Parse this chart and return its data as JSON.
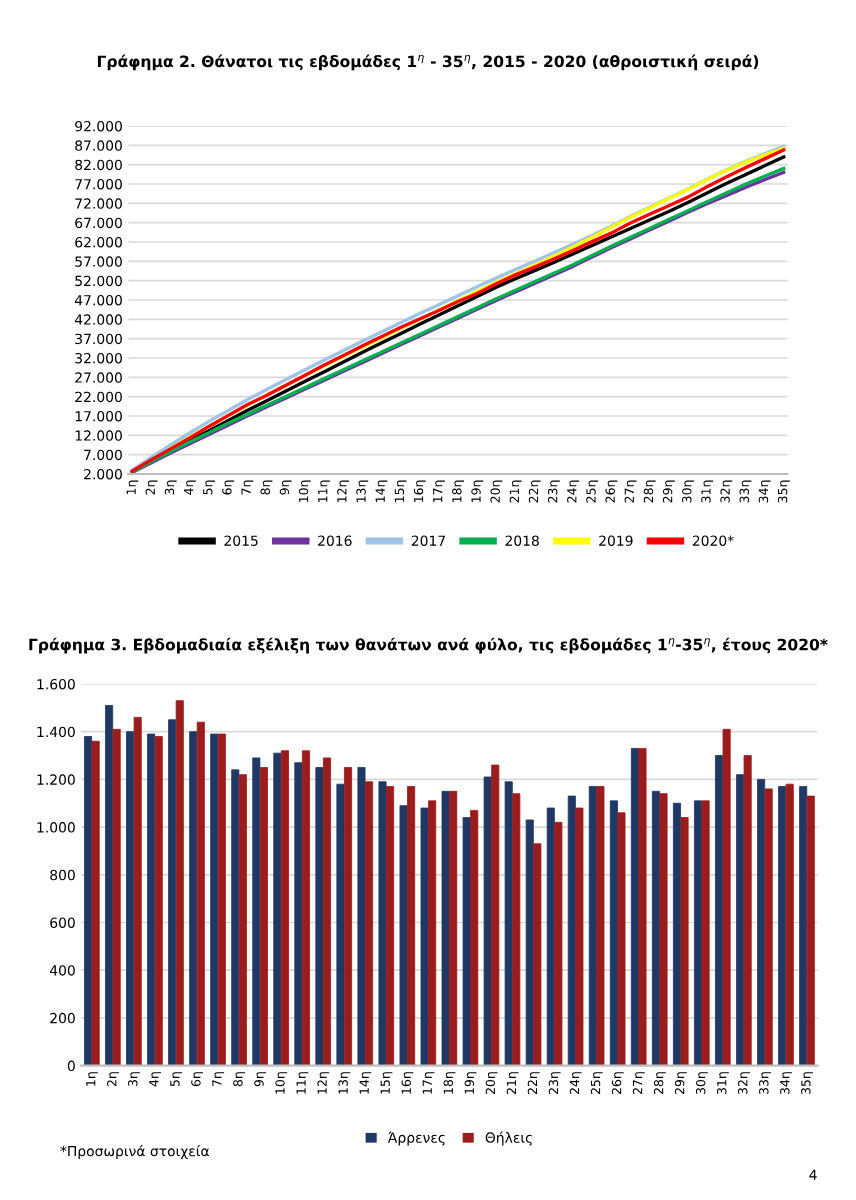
{
  "chart_data": [
    {
      "type": "line",
      "title": "Γράφημα 2. Θάνατοι τις εβδομάδες 1$^{η}$ - 35$^{η}$, 2015 - 2020 (αθροιστική σειρά)",
      "categories": [
        "1η",
        "2η",
        "3η",
        "4η",
        "5η",
        "6η",
        "7η",
        "8η",
        "9η",
        "10η",
        "11η",
        "12η",
        "13η",
        "14η",
        "15η",
        "16η",
        "17η",
        "18η",
        "19η",
        "20η",
        "21η",
        "22η",
        "23η",
        "24η",
        "25η",
        "26η",
        "27η",
        "28η",
        "29η",
        "30η",
        "31η",
        "32η",
        "33η",
        "34η",
        "35η"
      ],
      "series": [
        {
          "name": "2015",
          "color": "#000000",
          "values": [
            null,
            null,
            8000,
            10600,
            13200,
            15800,
            18400,
            20900,
            23400,
            25900,
            28400,
            30900,
            33400,
            35900,
            38300,
            40700,
            43100,
            45500,
            47900,
            50300,
            52500,
            54600,
            56700,
            58900,
            61100,
            63300,
            65500,
            67700,
            69900,
            72200,
            74700,
            77100,
            79400,
            81700,
            84000
          ]
        },
        {
          "name": "2016",
          "color": "#7030a0",
          "values": [
            2400,
            4900,
            7400,
            9800,
            12200,
            14600,
            17000,
            19300,
            21600,
            23900,
            26200,
            28500,
            30800,
            33100,
            35400,
            37700,
            40000,
            42300,
            44600,
            46900,
            49100,
            51300,
            53500,
            55700,
            58100,
            60500,
            62800,
            65100,
            67400,
            69700,
            71900,
            74000,
            76100,
            78100,
            80000
          ]
        },
        {
          "name": "2017",
          "color": "#9dc3e6",
          "values": [
            3000,
            6300,
            9500,
            12600,
            15600,
            18400,
            21200,
            23800,
            26400,
            28900,
            31400,
            33900,
            36300,
            38700,
            41100,
            43500,
            45800,
            48100,
            50400,
            52700,
            54900,
            57000,
            59200,
            61400,
            63700,
            66100,
            68600,
            71000,
            73300,
            75700,
            78200,
            80600,
            82800,
            84800,
            86700
          ]
        },
        {
          "name": "2018",
          "color": "#00b050",
          "values": [
            2500,
            5200,
            7800,
            10300,
            12700,
            15100,
            17400,
            19700,
            22000,
            24300,
            26600,
            28900,
            31200,
            33500,
            35800,
            38100,
            40400,
            42700,
            45000,
            47300,
            49500,
            51700,
            53900,
            56100,
            58500,
            60900,
            63200,
            65500,
            67800,
            70100,
            72400,
            74700,
            76900,
            79000,
            81000
          ]
        },
        {
          "name": "2019",
          "color": "#ffff00",
          "values": [
            null,
            null,
            8600,
            11500,
            14300,
            17100,
            19800,
            22400,
            24900,
            27400,
            29900,
            32400,
            34800,
            37200,
            39600,
            42000,
            44400,
            46800,
            49200,
            51600,
            53800,
            56000,
            58300,
            60700,
            63200,
            65800,
            68400,
            70800,
            73200,
            75600,
            78100,
            80500,
            82600,
            84500,
            86300
          ]
        },
        {
          "name": "2020*",
          "color": "#ff0000",
          "values": [
            2700,
            5700,
            8500,
            11300,
            14300,
            17100,
            19900,
            22300,
            24900,
            27500,
            30100,
            32600,
            35100,
            37500,
            39900,
            42100,
            44300,
            46600,
            48700,
            51200,
            53500,
            55500,
            57600,
            59800,
            62100,
            64300,
            66900,
            69200,
            71400,
            73600,
            76300,
            78800,
            81200,
            83500,
            85800
          ]
        }
      ],
      "ylim": [
        2000,
        92000
      ],
      "yticks": [
        {
          "value": 2000,
          "label": "2.000"
        },
        {
          "value": 7000,
          "label": "7.000"
        },
        {
          "value": 12000,
          "label": "12.000"
        },
        {
          "value": 17000,
          "label": "17.000"
        },
        {
          "value": 22000,
          "label": "22.000"
        },
        {
          "value": 27000,
          "label": "27.000"
        },
        {
          "value": 32000,
          "label": "32.000"
        },
        {
          "value": 37000,
          "label": "37.000"
        },
        {
          "value": 42000,
          "label": "42.000"
        },
        {
          "value": 47000,
          "label": "47.000"
        },
        {
          "value": 52000,
          "label": "52.000"
        },
        {
          "value": 57000,
          "label": "57.000"
        },
        {
          "value": 62000,
          "label": "62.000"
        },
        {
          "value": 67000,
          "label": "67.000"
        },
        {
          "value": 72000,
          "label": "72.000"
        },
        {
          "value": 77000,
          "label": "77.000"
        },
        {
          "value": 82000,
          "label": "82.000"
        },
        {
          "value": 87000,
          "label": "87.000"
        },
        {
          "value": 92000,
          "label": "92.000"
        }
      ],
      "grid": "y",
      "legend": "bottom",
      "line_style": "solid"
    },
    {
      "type": "bar",
      "title": "Γράφημα 3. Εβδομαδιαία εξέλιξη των θανάτων ανά φύλο, τις εβδομάδες 1$^{η}$-35$^{η}$, έτους 2020*",
      "categories": [
        "1η",
        "2η",
        "3η",
        "4η",
        "5η",
        "6η",
        "7η",
        "8η",
        "9η",
        "10η",
        "11η",
        "12η",
        "13η",
        "14η",
        "15η",
        "16η",
        "17η",
        "18η",
        "19η",
        "20η",
        "21η",
        "22η",
        "23η",
        "24η",
        "25η",
        "26η",
        "27η",
        "28η",
        "29η",
        "30η",
        "31η",
        "32η",
        "33η",
        "34η",
        "35η"
      ],
      "series": [
        {
          "name": "Άρρενες",
          "color": "#1f3864",
          "values": [
            1380,
            1510,
            1400,
            1390,
            1450,
            1400,
            1390,
            1240,
            1290,
            1310,
            1270,
            1250,
            1180,
            1250,
            1190,
            1090,
            1080,
            1150,
            1040,
            1210,
            1190,
            1030,
            1080,
            1130,
            1170,
            1110,
            1330,
            1150,
            1100,
            1110,
            1300,
            1220,
            1200,
            1170,
            1170
          ]
        },
        {
          "name": "Θήλεις",
          "color": "#9b1c1c",
          "values": [
            1360,
            1410,
            1460,
            1380,
            1530,
            1440,
            1390,
            1220,
            1250,
            1320,
            1320,
            1290,
            1250,
            1190,
            1170,
            1170,
            1110,
            1150,
            1070,
            1260,
            1140,
            930,
            1020,
            1080,
            1170,
            1060,
            1330,
            1140,
            1040,
            1110,
            1410,
            1300,
            1160,
            1180,
            1130
          ]
        }
      ],
      "ylim": [
        0,
        1600
      ],
      "yticks": [
        0,
        200,
        400,
        600,
        800,
        {
          "value": 1000,
          "label": "1.000"
        },
        {
          "value": 1200,
          "label": "1.200"
        },
        {
          "value": 1400,
          "label": "1.400"
        },
        {
          "value": 1600,
          "label": "1.600"
        }
      ],
      "grid": "y",
      "legend": "bottom",
      "annotations": [
        "*Προσωρινά στοιχεία",
        "4"
      ]
    }
  ]
}
